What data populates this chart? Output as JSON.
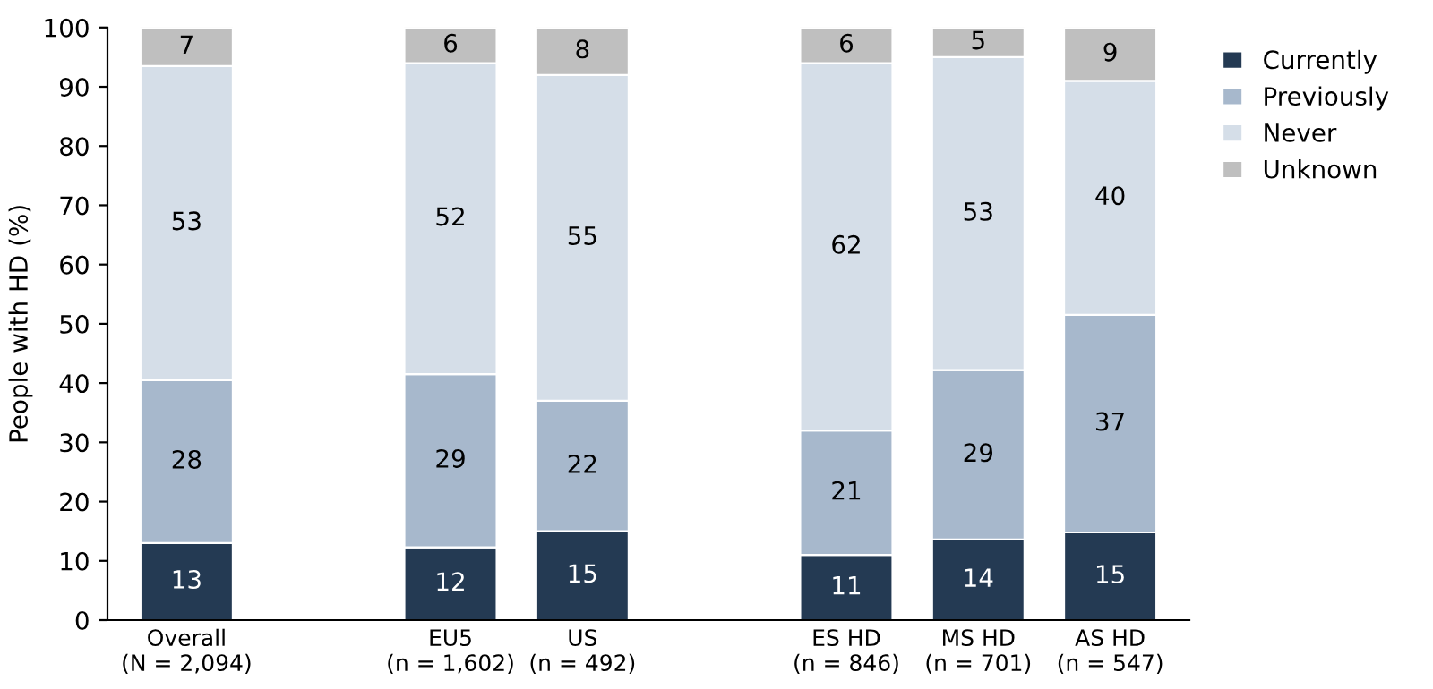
{
  "chart_data": {
    "type": "bar",
    "stacked": true,
    "ylabel": "People with HD (%)",
    "categories": [
      "Overall\n(N = 2,094)",
      null,
      "EU5\n(n = 1,602)",
      "US\n(n = 492)",
      null,
      "ES HD\n(n = 846)",
      "MS HD\n(n = 701)",
      "AS HD\n(n = 547)"
    ],
    "series": [
      {
        "name": "Currently",
        "color": "#243a53",
        "values": [
          13,
          null,
          12.3,
          15,
          null,
          11,
          13.6,
          14.8
        ],
        "value_labels": [
          "13",
          null,
          "12",
          "15",
          null,
          "11",
          "14",
          "15"
        ]
      },
      {
        "name": "Previously",
        "color": "#a7b8cc",
        "values": [
          27.5,
          null,
          29.2,
          22,
          null,
          21,
          28.6,
          36.7
        ],
        "value_labels": [
          "28",
          null,
          "29",
          "22",
          null,
          "21",
          "29",
          "37"
        ]
      },
      {
        "name": "Never",
        "color": "#d5dee8",
        "values": [
          53,
          null,
          52.5,
          55,
          null,
          62,
          52.8,
          39.5
        ],
        "value_labels": [
          "53",
          null,
          "52",
          "55",
          null,
          "62",
          "53",
          "40"
        ]
      },
      {
        "name": "Unknown",
        "color": "#bfbfbf",
        "values": [
          6.5,
          null,
          6,
          8,
          null,
          6,
          5,
          9
        ],
        "value_labels": [
          "7",
          null,
          "6",
          "8",
          null,
          "6",
          "5",
          "9"
        ]
      }
    ],
    "ylim": [
      0,
      100
    ],
    "yticks": [
      0,
      10,
      20,
      30,
      40,
      50,
      60,
      70,
      80,
      90,
      100
    ],
    "grid": false,
    "legend": "top right"
  }
}
